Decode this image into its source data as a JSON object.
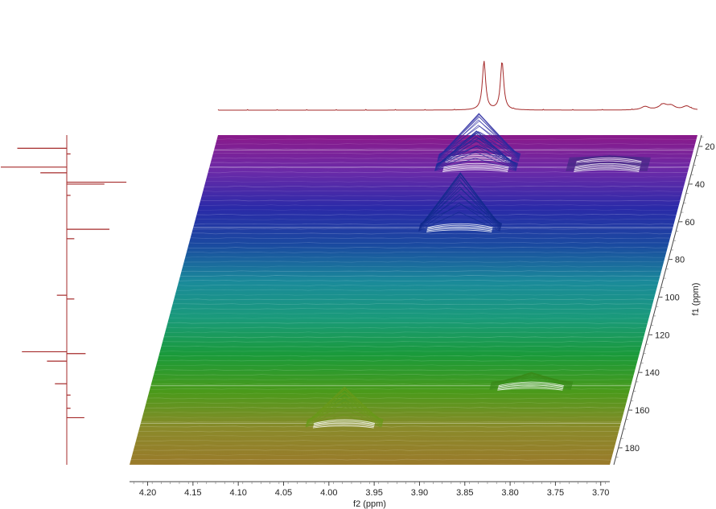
{
  "chart_data": {
    "type": "3d-stacked-2d-nmr",
    "x_axis": {
      "label": "f2 (ppm)",
      "ticks": [
        4.2,
        4.15,
        4.1,
        4.05,
        4.0,
        3.95,
        3.9,
        3.85,
        3.8,
        3.75,
        3.7
      ],
      "tick_labels": [
        "4.20",
        "4.15",
        "4.10",
        "4.05",
        "4.00",
        "3.95",
        "3.90",
        "3.85",
        "3.80",
        "3.75",
        "3.70"
      ],
      "range": [
        4.22,
        3.69
      ],
      "reversed": true
    },
    "y_axis": {
      "label": "f1 (ppm)",
      "ticks": [
        20,
        40,
        60,
        80,
        100,
        120,
        140,
        160,
        180
      ],
      "tick_labels": [
        "20",
        "40",
        "60",
        "80",
        "100",
        "120",
        "140",
        "160",
        "180"
      ],
      "range": [
        14,
        189
      ]
    },
    "f2_projection_peaks": [
      {
        "ppm": 3.926,
        "height": 1.0,
        "width": 0.0022
      },
      {
        "ppm": 3.906,
        "height": 1.0,
        "width": 0.0022
      },
      {
        "ppm": 3.748,
        "height": 0.07,
        "width": 0.005
      },
      {
        "ppm": 3.728,
        "height": 0.11,
        "width": 0.0055
      },
      {
        "ppm": 3.719,
        "height": 0.08,
        "width": 0.005
      },
      {
        "ppm": 3.702,
        "height": 0.08,
        "width": 0.005
      }
    ],
    "f1_projection_peaks": [
      {
        "ppm": 21,
        "height": 0.75,
        "side": "left"
      },
      {
        "ppm": 24,
        "height": 0.06,
        "side": "right"
      },
      {
        "ppm": 31,
        "height": 1.0,
        "side": "left"
      },
      {
        "ppm": 34,
        "height": 0.4,
        "side": "left"
      },
      {
        "ppm": 39,
        "height": 0.95,
        "side": "right"
      },
      {
        "ppm": 40,
        "height": 0.6,
        "side": "right"
      },
      {
        "ppm": 46,
        "height": 0.06,
        "side": "right"
      },
      {
        "ppm": 64,
        "height": 0.68,
        "side": "right"
      },
      {
        "ppm": 69,
        "height": 0.12,
        "side": "right"
      },
      {
        "ppm": 99,
        "height": 0.15,
        "side": "left"
      },
      {
        "ppm": 101,
        "height": 0.12,
        "side": "right"
      },
      {
        "ppm": 129,
        "height": 0.68,
        "side": "left"
      },
      {
        "ppm": 130,
        "height": 0.3,
        "side": "right"
      },
      {
        "ppm": 134,
        "height": 0.3,
        "side": "left"
      },
      {
        "ppm": 146,
        "height": 0.18,
        "side": "left"
      },
      {
        "ppm": 152,
        "height": 0.06,
        "side": "right"
      },
      {
        "ppm": 159,
        "height": 0.06,
        "side": "right"
      },
      {
        "ppm": 164,
        "height": 0.28,
        "side": "right"
      }
    ],
    "cross_peaks": [
      {
        "f2": 3.925,
        "f1": 26,
        "height": 55,
        "spread": 0.045,
        "color": "#2a2aa0"
      },
      {
        "f2": 3.925,
        "f1": 31,
        "height": 45,
        "spread": 0.045,
        "color": "#1d2a9a"
      },
      {
        "f2": 3.925,
        "f1": 63,
        "height": 68,
        "spread": 0.045,
        "color": "#102a8c"
      },
      {
        "f2": 3.78,
        "f1": 28,
        "height": 6,
        "spread": 0.045,
        "color": "#4a2a8a"
      },
      {
        "f2": 3.78,
        "f1": 31,
        "height": 4,
        "spread": 0.045,
        "color": "#4a2a8a"
      },
      {
        "f2": 3.8,
        "f1": 147,
        "height": 16,
        "spread": 0.045,
        "color": "#3a8a1a"
      },
      {
        "f2": 3.995,
        "f1": 167,
        "height": 45,
        "spread": 0.042,
        "color": "#6a9a1a"
      }
    ],
    "surface_colors": [
      "#8a1a8a",
      "#6a2aa8",
      "#2a2aa8",
      "#1a4aa0",
      "#1a8a9a",
      "#1a9a7a",
      "#1a9a3a",
      "#4a9a1a",
      "#8a8a2a",
      "#9a7a2a"
    ],
    "projection_color": "#a52a2a",
    "grid": false
  }
}
